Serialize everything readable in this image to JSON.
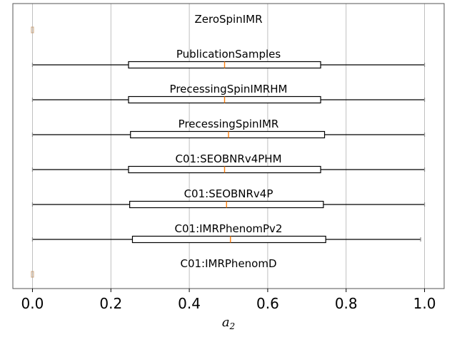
{
  "chart_data": {
    "type": "boxplot",
    "orientation": "horizontal",
    "xlabel": "a",
    "xlabel_subscript": "2",
    "xlim": [
      -0.05,
      1.05
    ],
    "xticks": [
      0.0,
      0.2,
      0.4,
      0.6,
      0.8,
      1.0
    ],
    "xtick_labels": [
      "0.0",
      "0.2",
      "0.4",
      "0.6",
      "0.8",
      "1.0"
    ],
    "grid": "vertical",
    "colors": {
      "median": "#ff7f0e",
      "box": "#000000",
      "grid": "#b0b0b0",
      "flier": "#c8a07a"
    },
    "series": [
      {
        "name": "ZeroSpinIMR",
        "point_mass": 0.0
      },
      {
        "name": "PublicationSamples",
        "min": 0.0,
        "q1": 0.245,
        "median": 0.49,
        "q3": 0.735,
        "max": 1.0
      },
      {
        "name": "PrecessingSpinIMRHM",
        "min": 0.0,
        "q1": 0.245,
        "median": 0.49,
        "q3": 0.735,
        "max": 1.0
      },
      {
        "name": "PrecessingSpinIMR",
        "min": 0.0,
        "q1": 0.25,
        "median": 0.5,
        "q3": 0.745,
        "max": 1.0
      },
      {
        "name": "C01:SEOBNRv4PHM",
        "min": 0.0,
        "q1": 0.245,
        "median": 0.49,
        "q3": 0.735,
        "max": 1.0
      },
      {
        "name": "C01:SEOBNRv4P",
        "min": 0.0,
        "q1": 0.248,
        "median": 0.495,
        "q3": 0.742,
        "max": 1.0
      },
      {
        "name": "C01:IMRPhenomPv2",
        "min": 0.0,
        "q1": 0.255,
        "median": 0.505,
        "q3": 0.748,
        "max": 0.99
      },
      {
        "name": "C01:IMRPhenomD",
        "point_mass": 0.0
      }
    ]
  }
}
